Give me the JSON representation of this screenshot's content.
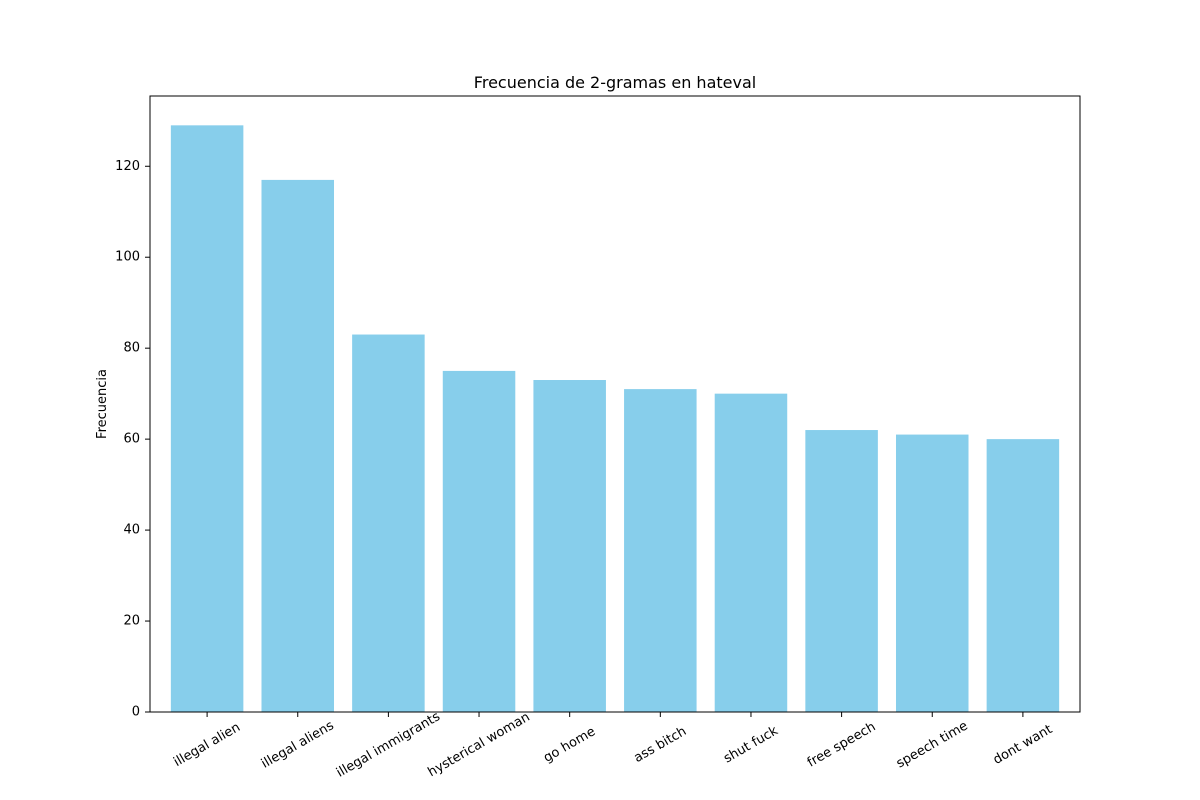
{
  "chart_data": {
    "type": "bar",
    "title": "Frecuencia de 2-gramas en hateval",
    "xlabel": "",
    "ylabel": "Frecuencia",
    "categories": [
      "illegal alien",
      "illegal aliens",
      "illegal immigrants",
      "hysterical woman",
      "go home",
      "ass bitch",
      "shut fuck",
      "free speech",
      "speech time",
      "dont want"
    ],
    "values": [
      129,
      117,
      83,
      75,
      73,
      71,
      70,
      62,
      61,
      60
    ],
    "ylim": [
      0,
      135.45
    ],
    "yticks": [
      0,
      20,
      40,
      60,
      80,
      100,
      120
    ],
    "grid": false,
    "bar_color": "#87ceeb",
    "xtick_rotation_deg": -30
  }
}
